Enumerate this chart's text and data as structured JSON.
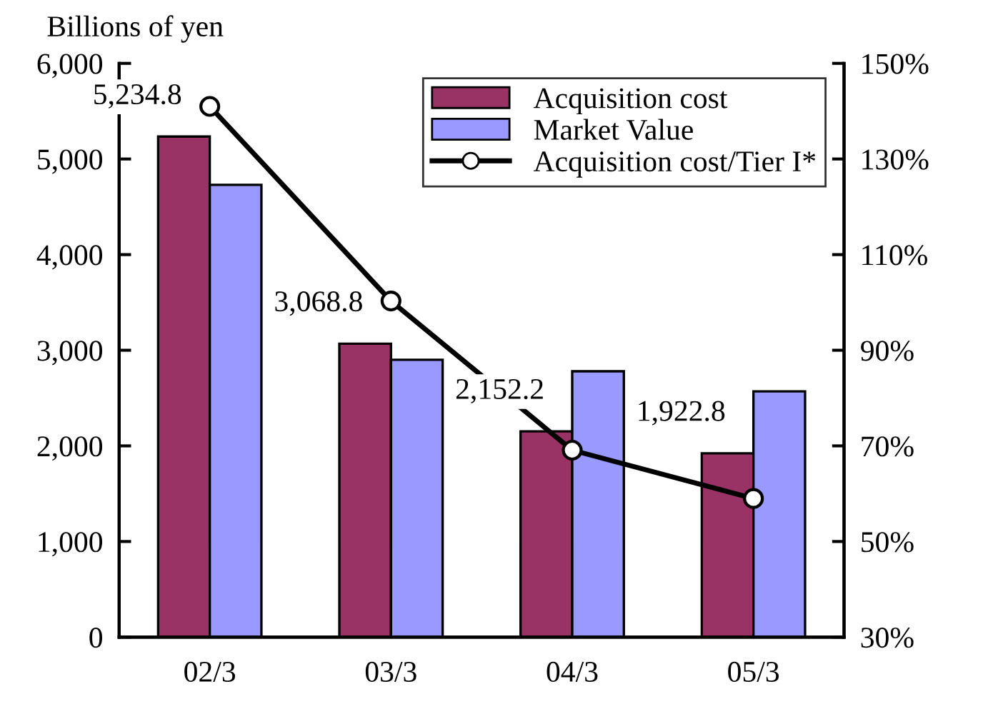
{
  "chart_data": {
    "type": "bar",
    "ylabel": "Billions of yen",
    "categories": [
      "02/3",
      "03/3",
      "04/3",
      "05/3"
    ],
    "series": [
      {
        "name": "Acquisition cost",
        "color": "#993366",
        "values": [
          5234.8,
          3068.8,
          2152.2,
          1922.8
        ],
        "value_labels": [
          "5,234.8",
          "3,068.8",
          "2,152.2",
          "1,922.8"
        ]
      },
      {
        "name": "Market Value",
        "color": "#9999ff",
        "values": [
          4730,
          2900,
          2780,
          2570
        ]
      },
      {
        "name": "Acquisition cost/Tier I*",
        "type": "line",
        "axis": "y2",
        "color": "#000000",
        "marker": "circle",
        "values": [
          141,
          100.3,
          69.1,
          59
        ]
      }
    ],
    "ylim": [
      0,
      6000
    ],
    "yticks": [
      {
        "value": 0,
        "label": "0"
      },
      {
        "value": 1000,
        "label": "1,000"
      },
      {
        "value": 2000,
        "label": "2,000"
      },
      {
        "value": 3000,
        "label": "3,000"
      },
      {
        "value": 4000,
        "label": "4,000"
      },
      {
        "value": 5000,
        "label": "5,000"
      },
      {
        "value": 6000,
        "label": "6,000"
      }
    ],
    "y2lim": [
      30,
      150
    ],
    "y2ticks": [
      {
        "value": 30,
        "label": "30%"
      },
      {
        "value": 50,
        "label": "50%"
      },
      {
        "value": 70,
        "label": "70%"
      },
      {
        "value": 90,
        "label": "90%"
      },
      {
        "value": 110,
        "label": "110%"
      },
      {
        "value": 130,
        "label": "130%"
      },
      {
        "value": 150,
        "label": "150%"
      }
    ],
    "grid": false,
    "legend": "top right"
  }
}
